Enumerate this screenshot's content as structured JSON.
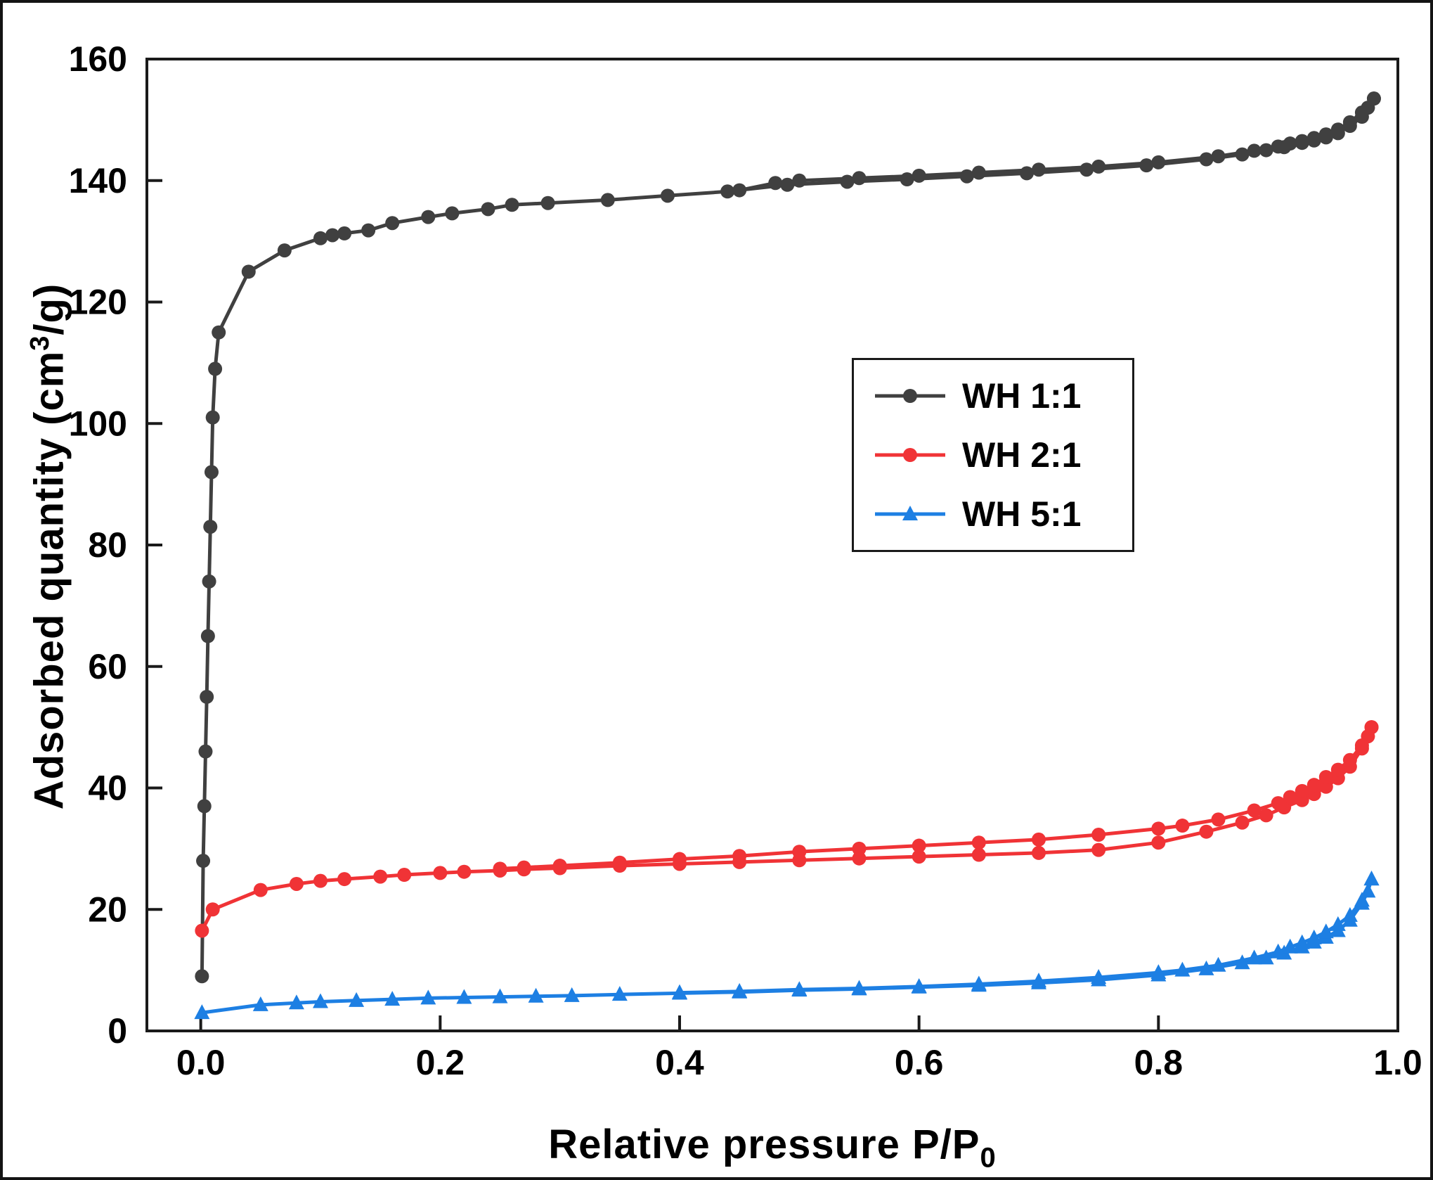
{
  "figure": {
    "xlabel_main": "Relative pressure P/P",
    "xlabel_sub": "0",
    "ylabel_pre": "Adsorbed quantity (cm",
    "ylabel_sup": "3",
    "ylabel_post": "/g)"
  },
  "chart_data": {
    "type": "line",
    "title": "",
    "xlabel": "Relative pressure P/P0",
    "ylabel": "Adsorbed quantity (cm3/g)",
    "xlim": [
      -0.045,
      1.0
    ],
    "ylim": [
      0,
      160
    ],
    "xticks": [
      0.0,
      0.2,
      0.4,
      0.6,
      0.8,
      1.0
    ],
    "yticks": [
      0,
      20,
      40,
      60,
      80,
      100,
      120,
      140,
      160
    ],
    "grid": false,
    "legend_position": "upper-right-inside",
    "axis_color": "#1a1a1a",
    "series": [
      {
        "name": "WH 1:1",
        "color": "#404040",
        "marker": "circle",
        "adsorption": [
          [
            0.001,
            9
          ],
          [
            0.002,
            28
          ],
          [
            0.003,
            37
          ],
          [
            0.004,
            46
          ],
          [
            0.005,
            55
          ],
          [
            0.006,
            65
          ],
          [
            0.007,
            74
          ],
          [
            0.008,
            83
          ],
          [
            0.009,
            92
          ],
          [
            0.01,
            101
          ],
          [
            0.012,
            109
          ],
          [
            0.015,
            115
          ],
          [
            0.04,
            125
          ],
          [
            0.07,
            128.5
          ],
          [
            0.1,
            130.5
          ],
          [
            0.11,
            131
          ],
          [
            0.12,
            131.3
          ],
          [
            0.14,
            131.8
          ],
          [
            0.16,
            133
          ],
          [
            0.19,
            134
          ],
          [
            0.21,
            134.6
          ],
          [
            0.24,
            135.3
          ],
          [
            0.26,
            136
          ],
          [
            0.29,
            136.3
          ],
          [
            0.34,
            136.8
          ],
          [
            0.39,
            137.5
          ],
          [
            0.44,
            138.2
          ],
          [
            0.49,
            139.3
          ],
          [
            0.54,
            139.8
          ],
          [
            0.59,
            140.2
          ],
          [
            0.64,
            140.7
          ],
          [
            0.69,
            141.2
          ],
          [
            0.74,
            141.8
          ],
          [
            0.79,
            142.5
          ],
          [
            0.84,
            143.5
          ],
          [
            0.87,
            144.3
          ],
          [
            0.89,
            145
          ],
          [
            0.905,
            145.5
          ],
          [
            0.92,
            146.2
          ],
          [
            0.93,
            146.6
          ],
          [
            0.94,
            147.1
          ],
          [
            0.95,
            147.8
          ],
          [
            0.96,
            149
          ],
          [
            0.97,
            150.5
          ],
          [
            0.975,
            152
          ],
          [
            0.98,
            153.5
          ]
        ],
        "desorption": [
          [
            0.98,
            153.5
          ],
          [
            0.97,
            151.2
          ],
          [
            0.96,
            149.6
          ],
          [
            0.95,
            148.4
          ],
          [
            0.94,
            147.6
          ],
          [
            0.93,
            147
          ],
          [
            0.92,
            146.5
          ],
          [
            0.91,
            146.1
          ],
          [
            0.9,
            145.6
          ],
          [
            0.88,
            144.9
          ],
          [
            0.85,
            144
          ],
          [
            0.8,
            143
          ],
          [
            0.75,
            142.3
          ],
          [
            0.7,
            141.8
          ],
          [
            0.65,
            141.3
          ],
          [
            0.6,
            140.8
          ],
          [
            0.55,
            140.4
          ],
          [
            0.5,
            140
          ],
          [
            0.48,
            139.6
          ],
          [
            0.45,
            138.4
          ]
        ]
      },
      {
        "name": "WH 2:1",
        "color": "#f03336",
        "marker": "circle",
        "adsorption": [
          [
            0.001,
            16.5
          ],
          [
            0.01,
            20
          ],
          [
            0.05,
            23.2
          ],
          [
            0.08,
            24.2
          ],
          [
            0.1,
            24.7
          ],
          [
            0.12,
            25
          ],
          [
            0.15,
            25.4
          ],
          [
            0.17,
            25.7
          ],
          [
            0.2,
            26
          ],
          [
            0.22,
            26.2
          ],
          [
            0.25,
            26.4
          ],
          [
            0.27,
            26.6
          ],
          [
            0.3,
            26.8
          ],
          [
            0.35,
            27.2
          ],
          [
            0.4,
            27.5
          ],
          [
            0.45,
            27.8
          ],
          [
            0.5,
            28.1
          ],
          [
            0.55,
            28.4
          ],
          [
            0.6,
            28.7
          ],
          [
            0.65,
            29
          ],
          [
            0.7,
            29.3
          ],
          [
            0.75,
            29.8
          ],
          [
            0.8,
            31
          ],
          [
            0.84,
            32.8
          ],
          [
            0.87,
            34.3
          ],
          [
            0.89,
            35.5
          ],
          [
            0.905,
            36.8
          ],
          [
            0.92,
            38
          ],
          [
            0.93,
            39
          ],
          [
            0.94,
            40.2
          ],
          [
            0.95,
            41.6
          ],
          [
            0.96,
            43.5
          ],
          [
            0.97,
            46.5
          ],
          [
            0.975,
            48.5
          ],
          [
            0.978,
            50
          ]
        ],
        "desorption": [
          [
            0.978,
            50
          ],
          [
            0.97,
            47
          ],
          [
            0.96,
            44.6
          ],
          [
            0.95,
            43
          ],
          [
            0.94,
            41.8
          ],
          [
            0.93,
            40.5
          ],
          [
            0.92,
            39.5
          ],
          [
            0.91,
            38.5
          ],
          [
            0.9,
            37.5
          ],
          [
            0.88,
            36.3
          ],
          [
            0.85,
            34.8
          ],
          [
            0.82,
            33.8
          ],
          [
            0.8,
            33.3
          ],
          [
            0.75,
            32.3
          ],
          [
            0.7,
            31.5
          ],
          [
            0.65,
            31
          ],
          [
            0.6,
            30.5
          ],
          [
            0.55,
            30
          ],
          [
            0.5,
            29.5
          ],
          [
            0.45,
            28.8
          ],
          [
            0.4,
            28.3
          ],
          [
            0.35,
            27.7
          ],
          [
            0.3,
            27.2
          ],
          [
            0.27,
            26.9
          ],
          [
            0.25,
            26.7
          ]
        ]
      },
      {
        "name": "WH 5:1",
        "color": "#1d7fe3",
        "marker": "triangle",
        "adsorption": [
          [
            0.001,
            3
          ],
          [
            0.05,
            4.3
          ],
          [
            0.08,
            4.6
          ],
          [
            0.1,
            4.8
          ],
          [
            0.13,
            5
          ],
          [
            0.16,
            5.2
          ],
          [
            0.19,
            5.4
          ],
          [
            0.22,
            5.5
          ],
          [
            0.25,
            5.6
          ],
          [
            0.28,
            5.7
          ],
          [
            0.31,
            5.8
          ],
          [
            0.35,
            6
          ],
          [
            0.4,
            6.2
          ],
          [
            0.45,
            6.4
          ],
          [
            0.5,
            6.7
          ],
          [
            0.55,
            6.9
          ],
          [
            0.6,
            7.2
          ],
          [
            0.65,
            7.5
          ],
          [
            0.7,
            7.9
          ],
          [
            0.75,
            8.4
          ],
          [
            0.8,
            9.2
          ],
          [
            0.84,
            10.2
          ],
          [
            0.87,
            11.2
          ],
          [
            0.89,
            12
          ],
          [
            0.905,
            12.8
          ],
          [
            0.92,
            13.8
          ],
          [
            0.93,
            14.6
          ],
          [
            0.94,
            15.4
          ],
          [
            0.95,
            16.5
          ],
          [
            0.96,
            18.2
          ],
          [
            0.97,
            21
          ],
          [
            0.975,
            23
          ],
          [
            0.978,
            25
          ]
        ],
        "desorption": [
          [
            0.978,
            25
          ],
          [
            0.97,
            21.5
          ],
          [
            0.96,
            19
          ],
          [
            0.95,
            17.5
          ],
          [
            0.94,
            16.3
          ],
          [
            0.93,
            15.3
          ],
          [
            0.92,
            14.5
          ],
          [
            0.91,
            13.8
          ],
          [
            0.9,
            13
          ],
          [
            0.88,
            12
          ],
          [
            0.85,
            10.8
          ],
          [
            0.82,
            10
          ],
          [
            0.8,
            9.6
          ],
          [
            0.75,
            8.8
          ],
          [
            0.7,
            8.2
          ],
          [
            0.65,
            7.7
          ],
          [
            0.6,
            7.3
          ],
          [
            0.55,
            7
          ],
          [
            0.5,
            6.8
          ],
          [
            0.45,
            6.5
          ],
          [
            0.4,
            6.3
          ]
        ]
      }
    ]
  }
}
